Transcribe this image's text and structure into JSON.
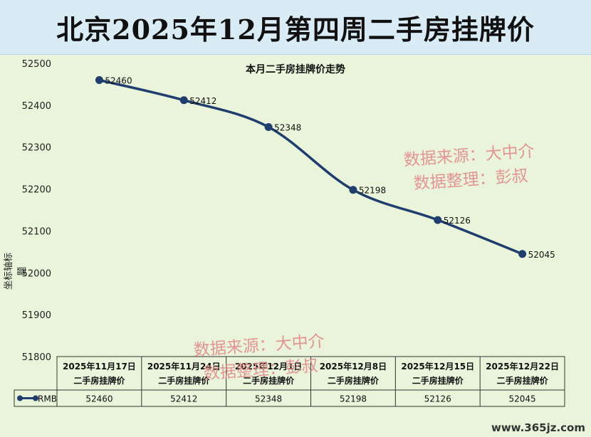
{
  "title": "北京2025年12月第四周二手房挂牌价",
  "chart_data": {
    "type": "line",
    "title": "本月二手房挂牌价走势",
    "ylabel": "坐标轴标题",
    "ylim": [
      51800,
      52500
    ],
    "yticks": [
      51800,
      51900,
      52000,
      52100,
      52200,
      52300,
      52400,
      52500
    ],
    "categories": [
      [
        "2025年11月17日",
        "二手房挂牌价"
      ],
      [
        "2025年11月24日",
        "二手房挂牌价"
      ],
      [
        "2025年12月1日",
        "二手房挂牌价"
      ],
      [
        "2025年12月8日",
        "二手房挂牌价"
      ],
      [
        "2025年12月15日",
        "二手房挂牌价"
      ],
      [
        "2025年12月22日",
        "二手房挂牌价"
      ]
    ],
    "series": [
      {
        "name": "RMB",
        "values": [
          52460,
          52412,
          52348,
          52198,
          52126,
          52045
        ],
        "color": "#1f3d6d"
      }
    ],
    "data_table": true,
    "grid": true
  },
  "watermark": {
    "line1": "数据来源：大中介",
    "line2": "数据整理：彭叔"
  },
  "site": "www.365jz.com"
}
